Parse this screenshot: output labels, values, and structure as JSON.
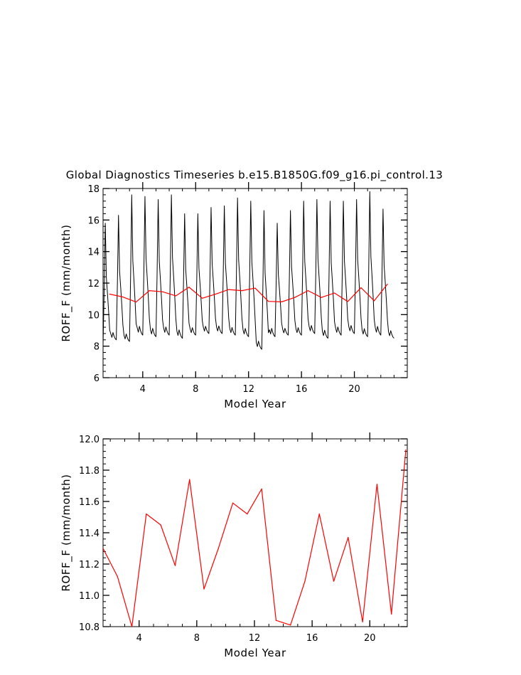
{
  "page": {
    "title": "Global Diagnostics Timeseries b.e15.B1850G.f09_g16.pi_control.13"
  },
  "colors": {
    "monthly_line": "#000000",
    "annual_line": "#ff0000",
    "axes": "#000000"
  },
  "chart_data": [
    {
      "type": "line",
      "title": "Global Diagnostics Timeseries b.e15.B1850G.f09_g16.pi_control.13",
      "xlabel": "Model Year",
      "ylabel": "ROFF_F (mm/month)",
      "xlim": [
        1,
        24
      ],
      "ylim": [
        6,
        18
      ],
      "xticks": [
        4,
        8,
        12,
        16,
        20
      ],
      "yticks": [
        6,
        8,
        10,
        12,
        14,
        16,
        18
      ],
      "xtick_labels": [
        "4",
        "8",
        "12",
        "16",
        "20"
      ],
      "ytick_labels": [
        "6",
        "8",
        "10",
        "12",
        "14",
        "16",
        "18"
      ],
      "grid": false,
      "series": [
        {
          "peaks": [
            15.8,
            16.3,
            17.6,
            17.5,
            17.3,
            17.6,
            16.4,
            16.4,
            16.8,
            16.9,
            17.4,
            17.2,
            16.6,
            15.8,
            16.6,
            17.2,
            17.3,
            17.2,
            17.2,
            17.3,
            17.8,
            16.7
          ],
          "troughs": [
            8.1,
            8.4,
            8.3,
            8.7,
            8.6,
            8.7,
            8.5,
            8.7,
            8.8,
            8.8,
            8.7,
            8.6,
            7.8,
            8.6,
            8.7,
            8.7,
            8.8,
            8.5,
            8.7,
            8.8,
            8.6,
            8.7,
            8.5
          ],
          "cycle_start_year": 1,
          "samples_per_year": 12,
          "color": "#000000"
        },
        {
          "x": [
            1.5,
            2.5,
            3.5,
            4.5,
            5.5,
            6.5,
            7.5,
            8.5,
            9.5,
            10.5,
            11.5,
            12.5,
            13.5,
            14.5,
            15.5,
            16.5,
            17.5,
            18.5,
            19.5,
            20.5,
            21.5,
            22.5
          ],
          "y": [
            11.3,
            11.12,
            10.8,
            11.52,
            11.45,
            11.19,
            11.74,
            11.04,
            11.3,
            11.59,
            11.52,
            11.68,
            10.84,
            10.81,
            11.09,
            11.52,
            11.09,
            11.37,
            10.83,
            11.71,
            10.88,
            11.93
          ],
          "color": "#ff0000"
        }
      ]
    },
    {
      "type": "line",
      "xlabel": "Model Year",
      "ylabel": "ROFF_F (mm/month)",
      "xlim": [
        1.5,
        22.6
      ],
      "ylim": [
        10.8,
        12.0
      ],
      "xticks": [
        4,
        8,
        12,
        16,
        20
      ],
      "yticks": [
        10.8,
        11.0,
        11.2,
        11.4,
        11.6,
        11.8,
        12.0
      ],
      "xtick_labels": [
        "4",
        "8",
        "12",
        "16",
        "20"
      ],
      "ytick_labels": [
        "10.8",
        "11.0",
        "11.2",
        "11.4",
        "11.6",
        "11.8",
        "12.0"
      ],
      "grid": false,
      "series": [
        {
          "x": [
            1.5,
            2.5,
            3.5,
            4.5,
            5.5,
            6.5,
            7.5,
            8.5,
            9.5,
            10.5,
            11.5,
            12.5,
            13.5,
            14.5,
            15.5,
            16.5,
            17.5,
            18.5,
            19.5,
            20.5,
            21.5,
            22.5
          ],
          "y": [
            11.3,
            11.12,
            10.8,
            11.52,
            11.45,
            11.19,
            11.74,
            11.04,
            11.3,
            11.59,
            11.52,
            11.68,
            10.84,
            10.81,
            11.09,
            11.52,
            11.09,
            11.37,
            10.83,
            11.71,
            10.88,
            11.93
          ],
          "color": "#ff0000"
        }
      ]
    }
  ]
}
